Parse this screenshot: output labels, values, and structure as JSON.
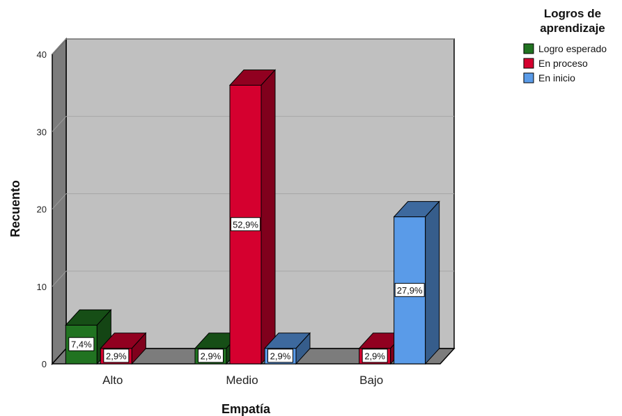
{
  "chart_data": {
    "type": "bar",
    "xlabel": "Empatía",
    "ylabel": "Recuento",
    "categories": [
      "Alto",
      "Medio",
      "Bajo"
    ],
    "ylim": [
      0,
      40
    ],
    "yticks": [
      0,
      10,
      20,
      30,
      40
    ],
    "grid": true,
    "legend_title": [
      "Logros de",
      "aprendizaje"
    ],
    "legend_position": "top-right",
    "series": [
      {
        "name": "Logro esperado",
        "color": "#217321",
        "values": [
          5,
          2,
          0
        ],
        "labels": [
          "7,4%",
          "2,9%",
          ""
        ]
      },
      {
        "name": "En proceso",
        "color": "#d5002f",
        "values": [
          2,
          36,
          2
        ],
        "labels": [
          "2,9%",
          "52,9%",
          "2,9%"
        ]
      },
      {
        "name": "En inicio",
        "color": "#5a9be8",
        "values": [
          0,
          2,
          19
        ],
        "labels": [
          "",
          "2,9%",
          "27,9%"
        ]
      }
    ]
  }
}
